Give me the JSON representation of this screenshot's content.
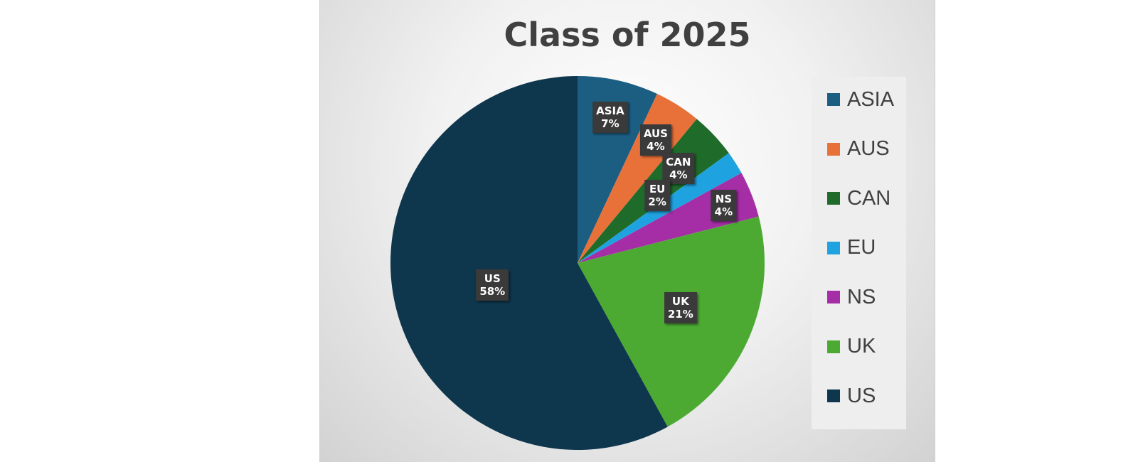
{
  "chart_data": {
    "type": "pie",
    "title": "Class of 2025",
    "slices": [
      {
        "label": "ASIA",
        "value": 7,
        "pct_label": "7%",
        "color": "#1b5e82"
      },
      {
        "label": "AUS",
        "value": 4,
        "pct_label": "4%",
        "color": "#e8713a"
      },
      {
        "label": "CAN",
        "value": 4,
        "pct_label": "4%",
        "color": "#1f6b2a"
      },
      {
        "label": "EU",
        "value": 2,
        "pct_label": "2%",
        "color": "#1fa3e0"
      },
      {
        "label": "NS",
        "value": 4,
        "pct_label": "4%",
        "color": "#a52ea6"
      },
      {
        "label": "UK",
        "value": 21,
        "pct_label": "21%",
        "color": "#4caa33"
      },
      {
        "label": "US",
        "value": 58,
        "pct_label": "58%",
        "color": "#0e364d"
      }
    ],
    "legend": [
      "ASIA",
      "AUS",
      "CAN",
      "EU",
      "NS",
      "UK",
      "US"
    ],
    "legend_position": "right"
  }
}
